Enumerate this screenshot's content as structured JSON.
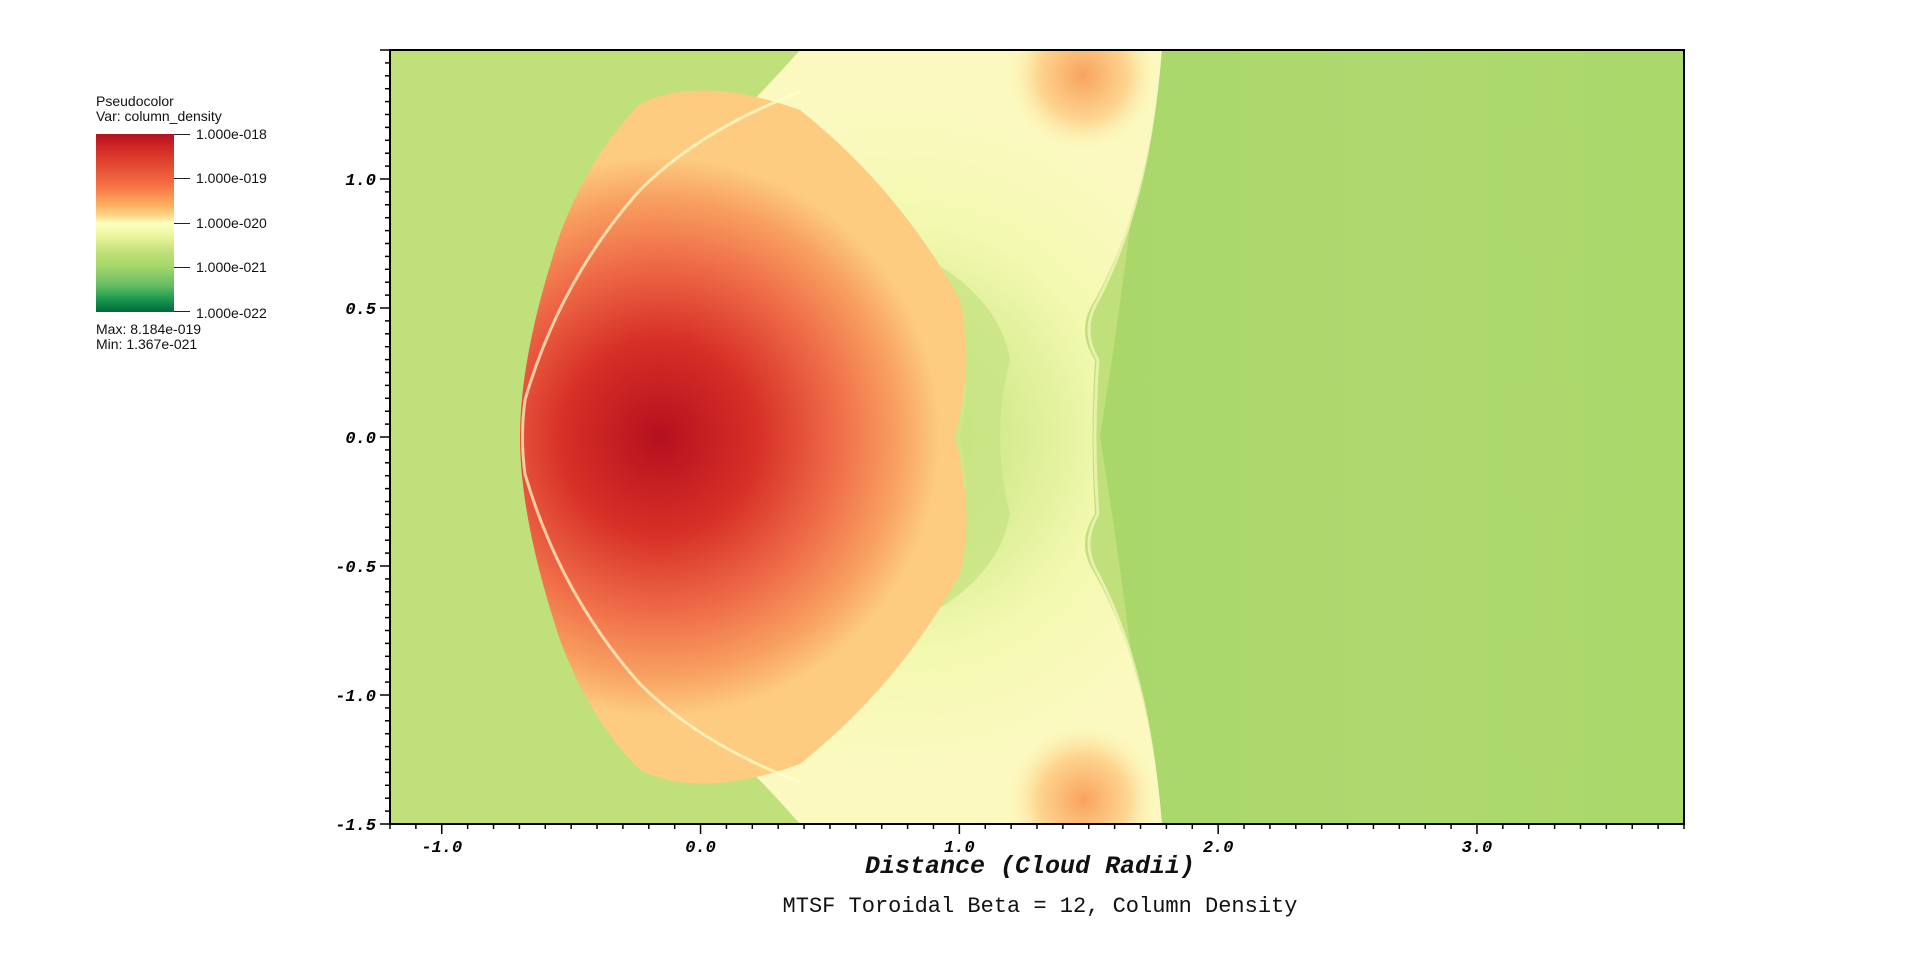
{
  "legend": {
    "plot_type": "Pseudocolor",
    "var_label": "Var: column_density",
    "colorbar_labels": [
      "1.000e-018",
      "1.000e-019",
      "1.000e-020",
      "1.000e-021",
      "1.000e-022"
    ],
    "max_label": "Max:  8.184e-019",
    "min_label": "Min:  1.367e-021",
    "colormap": [
      "#006837",
      "#1a9850",
      "#66bd63",
      "#a6d96a",
      "#d9ef8b",
      "#ffffbf",
      "#fee08b",
      "#fdae61",
      "#f46d43",
      "#d73027",
      "#a50026"
    ]
  },
  "chart_data": {
    "type": "heatmap",
    "title": "MTSF Toroidal Beta = 12, Column Density",
    "xlabel": "Distance (Cloud Radii)",
    "ylabel": "",
    "xlim": [
      -1.2,
      3.8
    ],
    "ylim": [
      -1.5,
      1.5
    ],
    "x_ticks": [
      -1.0,
      0.0,
      1.0,
      2.0,
      3.0
    ],
    "x_tick_labels": [
      "-1.0",
      "0.0",
      "1.0",
      "2.0",
      "3.0"
    ],
    "y_ticks": [
      1.0,
      0.5,
      0.0,
      -0.5,
      -1.0,
      -1.5
    ],
    "y_tick_labels": [
      "1.0",
      "0.5",
      "0.0",
      "-0.5",
      "-1.0",
      "-1.5"
    ],
    "colorbar": {
      "scale": "log",
      "range": [
        1e-22,
        1e-18
      ],
      "ticks": [
        1e-18,
        1e-19,
        1e-20,
        1e-21,
        1e-22
      ]
    },
    "data_max": 8.184e-19,
    "data_min": 1.367e-21,
    "background_color": "#bfe07a"
  }
}
